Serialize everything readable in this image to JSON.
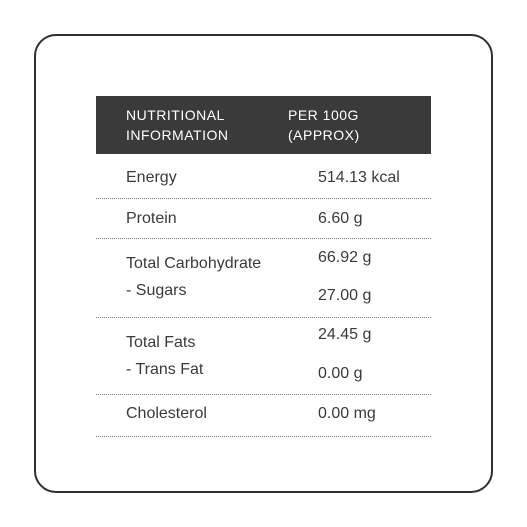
{
  "header": {
    "col1": [
      "NUTRITIONAL",
      "INFORMATION"
    ],
    "col2": [
      "PER 100G",
      "(APPROX)"
    ]
  },
  "rows": [
    {
      "labels": [
        "Energy"
      ],
      "values": [
        "514.13 kcal"
      ]
    },
    {
      "labels": [
        "Protein"
      ],
      "values": [
        "6.60 g"
      ]
    },
    {
      "labels": [
        "Total Carbohydrate",
        "- Sugars"
      ],
      "values": [
        "66.92 g",
        "27.00 g"
      ]
    },
    {
      "labels": [
        "Total Fats",
        "- Trans Fat"
      ],
      "values": [
        "24.45 g",
        "0.00 g"
      ]
    },
    {
      "labels": [
        "Cholesterol"
      ],
      "values": [
        "0.00 mg"
      ]
    }
  ]
}
